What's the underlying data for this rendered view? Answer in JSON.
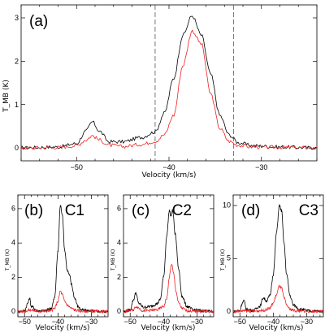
{
  "chart_data": [
    {
      "type": "line",
      "panel_label": "(a)",
      "xlabel": "Velocity (km/s)",
      "ylabel": "T_MB (K)",
      "xlim": [
        -56,
        -24
      ],
      "ylim": [
        -0.3,
        3.3
      ],
      "xticks": [
        -50,
        -40,
        -30
      ],
      "yticks": [
        0,
        1,
        2,
        3
      ],
      "vlines": [
        -41.5,
        -33
      ],
      "peaks": [
        [
          -48.3,
          0.6
        ],
        [
          -37.5,
          3.05
        ]
      ],
      "series": [
        {
          "color": "#000000",
          "x": [
            -56,
            -52,
            -50,
            -49,
            -48.3,
            -47.5,
            -46.5,
            -45,
            -43,
            -41.5,
            -40.5,
            -39.5,
            -38.5,
            -37.5,
            -36.5,
            -35.5,
            -34.5,
            -33.5,
            -32.5,
            -31,
            -28,
            -24
          ],
          "y": [
            0,
            0.02,
            0.1,
            0.38,
            0.6,
            0.38,
            0.14,
            0.14,
            0.24,
            0.37,
            0.8,
            1.6,
            2.6,
            3.05,
            2.6,
            1.7,
            0.75,
            0.3,
            0.12,
            0.05,
            0.02,
            0
          ]
        },
        {
          "color": "#ee2222",
          "x": [
            -56,
            -52,
            -50,
            -49,
            -48.3,
            -47.5,
            -46.5,
            -45,
            -43,
            -41.5,
            -40.5,
            -39.5,
            -38.5,
            -37.5,
            -36.5,
            -35.5,
            -34.5,
            -33.5,
            -32.5,
            -31,
            -28,
            -24
          ],
          "y": [
            0,
            0.01,
            0.05,
            0.18,
            0.28,
            0.18,
            0.06,
            0.03,
            0.08,
            0.15,
            0.3,
            0.75,
            1.9,
            2.7,
            2.4,
            1.25,
            0.45,
            0.15,
            0.06,
            0.02,
            0.01,
            0
          ]
        }
      ]
    },
    {
      "type": "line",
      "panel_label": "(b)",
      "title": "C1",
      "xlabel": "Velocity (km/s)",
      "ylabel": "T_MB (K)",
      "xlim": [
        -52,
        -25
      ],
      "ylim": [
        -0.3,
        6.8
      ],
      "xticks": [
        -50,
        -40,
        -30
      ],
      "yticks": [
        0,
        2,
        4,
        6
      ],
      "series": [
        {
          "color": "#000000",
          "x": [
            -52,
            -50,
            -49,
            -48.5,
            -48,
            -46,
            -44,
            -42,
            -41,
            -40,
            -39.3,
            -38.7,
            -38,
            -37.2,
            -36.5,
            -36,
            -35,
            -34,
            -33,
            -31,
            -28,
            -25
          ],
          "y": [
            0,
            0.05,
            0.5,
            0.8,
            0.3,
            0.05,
            0.05,
            0.2,
            0.8,
            3.5,
            6.2,
            5.7,
            3.6,
            2.4,
            2.1,
            1.6,
            0.8,
            0.3,
            0.1,
            0.05,
            0.02,
            0
          ]
        },
        {
          "color": "#ee2222",
          "x": [
            -52,
            -50,
            -48.5,
            -46,
            -42,
            -41,
            -40,
            -39.3,
            -38.7,
            -38,
            -37,
            -36,
            -35,
            -33,
            -30,
            -25
          ],
          "y": [
            0,
            0.02,
            0.1,
            0.02,
            0.05,
            0.2,
            0.6,
            1.2,
            1.0,
            0.6,
            0.35,
            0.2,
            0.1,
            0.03,
            0.01,
            0
          ]
        }
      ]
    },
    {
      "type": "line",
      "panel_label": "(c)",
      "title": "C2",
      "xlabel": "Velocity (km/s)",
      "ylabel": "T_MB (K)",
      "xlim": [
        -52,
        -25
      ],
      "ylim": [
        -0.3,
        6.8
      ],
      "xticks": [
        -50,
        -40,
        -30
      ],
      "yticks": [
        0,
        2,
        4,
        6
      ],
      "series": [
        {
          "color": "#000000",
          "x": [
            -52,
            -50,
            -49,
            -48.3,
            -47.5,
            -46,
            -44,
            -42,
            -41,
            -40,
            -39,
            -38.3,
            -37.8,
            -37.3,
            -36.5,
            -35.5,
            -34.5,
            -33,
            -31,
            -28,
            -25
          ],
          "y": [
            0,
            0.1,
            0.7,
            1.1,
            0.5,
            0.25,
            0.3,
            0.45,
            0.7,
            2.0,
            4.5,
            5.9,
            5.6,
            5.9,
            4.5,
            2.5,
            0.9,
            0.3,
            0.1,
            0.05,
            0
          ]
        },
        {
          "color": "#ee2222",
          "x": [
            -52,
            -49,
            -48.3,
            -46,
            -42,
            -40,
            -39,
            -38.3,
            -37.6,
            -37,
            -36.3,
            -35.5,
            -34.5,
            -33,
            -30,
            -25
          ],
          "y": [
            0,
            0.1,
            0.3,
            0.05,
            0.1,
            0.3,
            0.8,
            2.0,
            2.8,
            2.2,
            1.2,
            0.5,
            0.2,
            0.05,
            0.02,
            0
          ]
        }
      ]
    },
    {
      "type": "line",
      "panel_label": "(d)",
      "title": "C3",
      "xlabel": "Velocity (km/s)",
      "ylabel": "T_MB (K)",
      "xlim": [
        -52,
        -25
      ],
      "ylim": [
        -0.5,
        11
      ],
      "xticks": [
        -50,
        -40,
        -30
      ],
      "yticks": [
        0,
        5,
        10
      ],
      "series": [
        {
          "color": "#000000",
          "x": [
            -52,
            -50,
            -49.3,
            -48.8,
            -48,
            -46,
            -44,
            -43,
            -42,
            -41,
            -40,
            -39,
            -38.2,
            -37.5,
            -36.8,
            -36,
            -35,
            -34,
            -32,
            -29,
            -25
          ],
          "y": [
            0,
            0.1,
            0.8,
            1.0,
            0.2,
            0.1,
            0.5,
            1.3,
            1.0,
            1.5,
            3.5,
            7.5,
            10.0,
            9.5,
            6.5,
            3.5,
            1.5,
            0.6,
            0.2,
            0.05,
            0
          ]
        },
        {
          "color": "#ee2222",
          "x": [
            -52,
            -49,
            -46,
            -43,
            -41,
            -40,
            -39,
            -38.2,
            -37.5,
            -36.8,
            -36,
            -35,
            -33,
            -30,
            -25
          ],
          "y": [
            0,
            0.05,
            0.02,
            0.1,
            0.3,
            0.8,
            1.6,
            2.4,
            2.2,
            1.3,
            0.6,
            0.2,
            0.05,
            0.02,
            0
          ]
        }
      ]
    }
  ]
}
